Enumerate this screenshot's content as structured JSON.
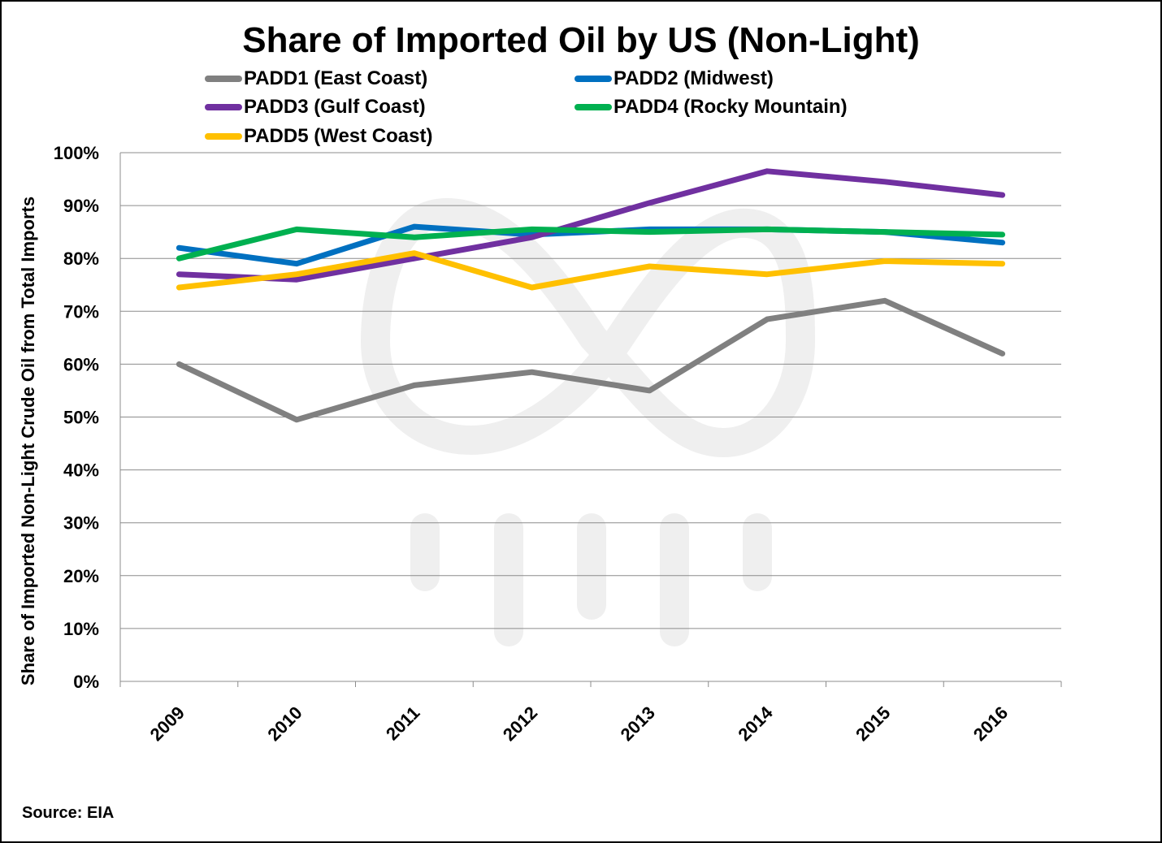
{
  "chart_data": {
    "type": "line",
    "title": "Share of Imported Oil by US (Non-Light)",
    "xlabel": "",
    "ylabel": "Share of Imported Non-Light Crude Oil from Total Imports",
    "categories": [
      "2009",
      "2010",
      "2011",
      "2012",
      "2013",
      "2014",
      "2015",
      "2016"
    ],
    "y_ticks": [
      "0%",
      "10%",
      "20%",
      "30%",
      "40%",
      "50%",
      "60%",
      "70%",
      "80%",
      "90%",
      "100%"
    ],
    "ylim": [
      0,
      100
    ],
    "grid": true,
    "legend_position": "top",
    "series": [
      {
        "name": "PADD1 (East Coast)",
        "color": "#808080",
        "values": [
          60,
          49.5,
          56,
          58.5,
          55,
          68.5,
          72,
          62
        ]
      },
      {
        "name": "PADD2 (Midwest)",
        "color": "#0070C0",
        "values": [
          82,
          79,
          86,
          84.5,
          85.5,
          85.5,
          85,
          83
        ]
      },
      {
        "name": "PADD3 (Gulf Coast)",
        "color": "#7030A0",
        "values": [
          77,
          76,
          80,
          84,
          90.5,
          96.5,
          94.5,
          92
        ]
      },
      {
        "name": "PADD4 (Rocky Mountain)",
        "color": "#00B050",
        "values": [
          80,
          85.5,
          84,
          85.5,
          85,
          85.5,
          85,
          84.5
        ]
      },
      {
        "name": "PADD5 (West Coast)",
        "color": "#FFC000",
        "values": [
          74.5,
          77,
          81,
          74.5,
          78.5,
          77,
          79.5,
          79
        ]
      }
    ]
  },
  "source": "Source: EIA",
  "watermark": {
    "icon": "infinity-logo-icon",
    "color": "#EFEFEF"
  }
}
